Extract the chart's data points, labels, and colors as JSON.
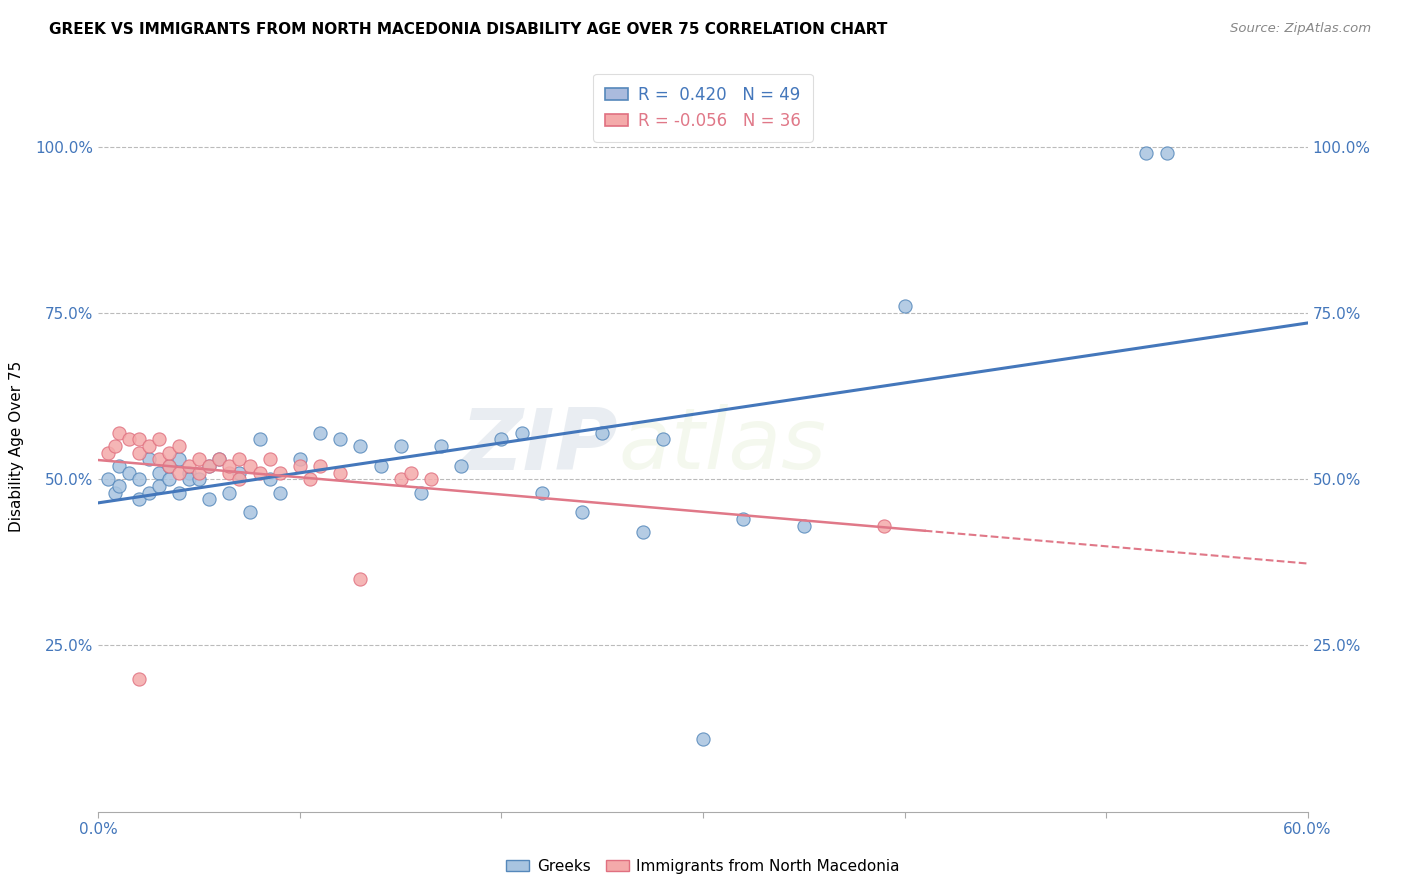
{
  "title": "GREEK VS IMMIGRANTS FROM NORTH MACEDONIA DISABILITY AGE OVER 75 CORRELATION CHART",
  "source": "Source: ZipAtlas.com",
  "ylabel": "Disability Age Over 75",
  "xlim": [
    0.0,
    0.6
  ],
  "ylim": [
    0.0,
    1.1
  ],
  "xtick_vals": [
    0.0,
    0.1,
    0.2,
    0.3,
    0.4,
    0.5,
    0.6
  ],
  "xtick_labels_visible": [
    "0.0%",
    "",
    "",
    "",
    "",
    "",
    "60.0%"
  ],
  "ytick_vals": [
    0.25,
    0.5,
    0.75,
    1.0
  ],
  "ytick_labels": [
    "25.0%",
    "50.0%",
    "75.0%",
    "100.0%"
  ],
  "blue_R": 0.42,
  "blue_N": 49,
  "pink_R": -0.056,
  "pink_N": 36,
  "blue_color": "#A8C4E0",
  "blue_edge_color": "#5588BB",
  "pink_color": "#F4AAAA",
  "pink_edge_color": "#E07080",
  "blue_line_color": "#4477BB",
  "pink_line_color": "#E07888",
  "watermark_zip": "ZIP",
  "watermark_atlas": "atlas",
  "legend_label_blue": "Greeks",
  "legend_label_pink": "Immigrants from North Macedonia",
  "blue_scatter_x": [
    0.005,
    0.008,
    0.01,
    0.01,
    0.015,
    0.02,
    0.02,
    0.025,
    0.025,
    0.03,
    0.03,
    0.035,
    0.035,
    0.04,
    0.04,
    0.045,
    0.045,
    0.05,
    0.055,
    0.055,
    0.06,
    0.065,
    0.07,
    0.075,
    0.08,
    0.085,
    0.09,
    0.1,
    0.11,
    0.12,
    0.13,
    0.14,
    0.15,
    0.16,
    0.17,
    0.18,
    0.2,
    0.21,
    0.22,
    0.24,
    0.25,
    0.27,
    0.28,
    0.3,
    0.32,
    0.35,
    0.4,
    0.52,
    0.53
  ],
  "blue_scatter_y": [
    0.5,
    0.48,
    0.52,
    0.49,
    0.51,
    0.5,
    0.47,
    0.53,
    0.48,
    0.51,
    0.49,
    0.52,
    0.5,
    0.53,
    0.48,
    0.51,
    0.5,
    0.5,
    0.52,
    0.47,
    0.53,
    0.48,
    0.51,
    0.45,
    0.56,
    0.5,
    0.48,
    0.53,
    0.57,
    0.56,
    0.55,
    0.52,
    0.55,
    0.48,
    0.55,
    0.52,
    0.56,
    0.57,
    0.48,
    0.45,
    0.57,
    0.42,
    0.56,
    0.11,
    0.44,
    0.43,
    0.76,
    0.99,
    0.99
  ],
  "pink_scatter_x": [
    0.005,
    0.008,
    0.01,
    0.015,
    0.02,
    0.02,
    0.025,
    0.03,
    0.03,
    0.035,
    0.035,
    0.04,
    0.04,
    0.045,
    0.05,
    0.05,
    0.055,
    0.06,
    0.065,
    0.065,
    0.07,
    0.07,
    0.075,
    0.08,
    0.085,
    0.09,
    0.1,
    0.105,
    0.11,
    0.12,
    0.13,
    0.15,
    0.155,
    0.165,
    0.39,
    0.02
  ],
  "pink_scatter_y": [
    0.54,
    0.55,
    0.57,
    0.56,
    0.54,
    0.56,
    0.55,
    0.53,
    0.56,
    0.52,
    0.54,
    0.55,
    0.51,
    0.52,
    0.53,
    0.51,
    0.52,
    0.53,
    0.51,
    0.52,
    0.53,
    0.5,
    0.52,
    0.51,
    0.53,
    0.51,
    0.52,
    0.5,
    0.52,
    0.51,
    0.35,
    0.5,
    0.51,
    0.5,
    0.43,
    0.2
  ]
}
